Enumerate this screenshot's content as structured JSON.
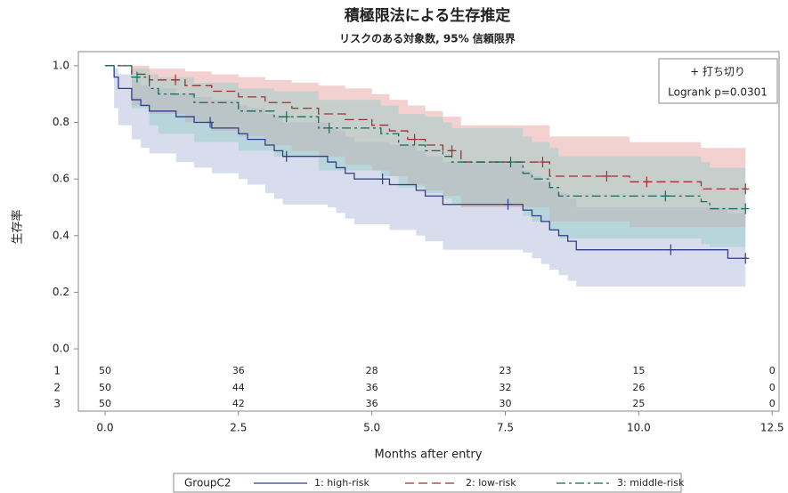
{
  "chart_data": {
    "type": "km-step",
    "title": "積極限法による生存推定",
    "subtitle": "リスクのある対象数, 95% 信頼限界",
    "xlabel": "Months after entry",
    "ylabel": "生存率",
    "xlim": [
      -0.5,
      12.63
    ],
    "ylim": [
      -0.22,
      1.05
    ],
    "xticks": [
      {
        "value": 0,
        "label": "0.0"
      },
      2.5,
      {
        "value": 5,
        "label": "5.0"
      },
      7.5,
      {
        "value": 10,
        "label": "10.0"
      },
      12.5
    ],
    "yticks": [
      {
        "value": 0,
        "label": "0.0"
      },
      0.2,
      0.4,
      0.6,
      0.8,
      {
        "value": 1,
        "label": "1.0"
      }
    ],
    "inset": {
      "censor_label": "+ 打ち切り",
      "test": "Logrank p=0.0301"
    },
    "legend_title": "GroupC2",
    "series": [
      {
        "name": "1: high-risk",
        "color": "#2e3d8f",
        "band_color": "#a9b3d8",
        "dash": "solid",
        "times": [
          0,
          0.17,
          0.25,
          0.5,
          0.67,
          0.83,
          1.33,
          1.67,
          2.0,
          2.5,
          2.67,
          3.0,
          3.17,
          3.33,
          4.17,
          4.33,
          4.5,
          4.67,
          5.33,
          5.83,
          6.0,
          6.33,
          7.83,
          8.0,
          8.17,
          8.33,
          8.5,
          8.67,
          8.83,
          11.67
        ],
        "values": [
          1,
          0.96,
          0.92,
          0.88,
          0.86,
          0.84,
          0.82,
          0.8,
          0.78,
          0.76,
          0.74,
          0.72,
          0.7,
          0.68,
          0.66,
          0.64,
          0.62,
          0.6,
          0.58,
          0.56,
          0.54,
          0.51,
          0.49,
          0.47,
          0.45,
          0.42,
          0.4,
          0.38,
          0.35,
          0.32
        ],
        "lower": [
          1,
          0.85,
          0.79,
          0.74,
          0.71,
          0.69,
          0.66,
          0.64,
          0.62,
          0.6,
          0.58,
          0.55,
          0.53,
          0.51,
          0.5,
          0.48,
          0.46,
          0.44,
          0.42,
          0.4,
          0.38,
          0.35,
          0.34,
          0.32,
          0.3,
          0.28,
          0.26,
          0.24,
          0.22,
          0.22
        ],
        "upper": [
          1,
          0.99,
          0.97,
          0.95,
          0.93,
          0.92,
          0.9,
          0.89,
          0.88,
          0.86,
          0.85,
          0.83,
          0.82,
          0.8,
          0.78,
          0.77,
          0.75,
          0.73,
          0.72,
          0.7,
          0.68,
          0.66,
          0.63,
          0.61,
          0.59,
          0.57,
          0.55,
          0.53,
          0.5,
          0.48
        ],
        "censor_times": [
          1.97,
          3.4,
          5.2,
          7.55,
          10.6,
          12.0
        ],
        "censor_values": [
          0.8,
          0.68,
          0.6,
          0.51,
          0.35,
          0.32
        ]
      },
      {
        "name": "2: low-risk",
        "color": "#a0302f",
        "band_color": "#e59a9a",
        "dash": "dashed",
        "times": [
          0,
          0.5,
          0.83,
          1.5,
          2.0,
          2.5,
          3.0,
          3.5,
          4.0,
          4.5,
          5.0,
          5.33,
          5.67,
          6.0,
          6.33,
          6.67,
          8.33,
          9.83,
          11.17
        ],
        "values": [
          1,
          0.97,
          0.95,
          0.93,
          0.91,
          0.89,
          0.87,
          0.85,
          0.83,
          0.81,
          0.79,
          0.77,
          0.74,
          0.72,
          0.7,
          0.66,
          0.61,
          0.59,
          0.565
        ],
        "lower": [
          1,
          0.86,
          0.83,
          0.8,
          0.77,
          0.75,
          0.72,
          0.7,
          0.68,
          0.65,
          0.63,
          0.61,
          0.58,
          0.56,
          0.54,
          0.5,
          0.45,
          0.43,
          0.43
        ],
        "upper": [
          1,
          1,
          0.99,
          0.98,
          0.97,
          0.96,
          0.95,
          0.94,
          0.93,
          0.92,
          0.9,
          0.88,
          0.86,
          0.84,
          0.82,
          0.79,
          0.75,
          0.73,
          0.71
        ],
        "censor_times": [
          1.32,
          5.8,
          6.5,
          8.2,
          9.4,
          10.15,
          12.0
        ],
        "censor_values": [
          0.95,
          0.74,
          0.7,
          0.66,
          0.61,
          0.59,
          0.565
        ]
      },
      {
        "name": "3: middle-risk",
        "color": "#0b6e5e",
        "band_color": "#93cbc6",
        "dash": "dashdot",
        "times": [
          0,
          0.5,
          0.83,
          1.0,
          1.67,
          2.5,
          3.17,
          4.0,
          5.17,
          5.5,
          6.0,
          6.33,
          6.5,
          7.83,
          8.0,
          8.33,
          8.5,
          11.17,
          11.33
        ],
        "values": [
          1,
          0.96,
          0.92,
          0.9,
          0.87,
          0.84,
          0.82,
          0.78,
          0.76,
          0.72,
          0.7,
          0.68,
          0.66,
          0.62,
          0.6,
          0.57,
          0.54,
          0.52,
          0.495
        ],
        "lower": [
          1,
          0.85,
          0.79,
          0.76,
          0.73,
          0.7,
          0.68,
          0.63,
          0.61,
          0.57,
          0.55,
          0.53,
          0.51,
          0.47,
          0.45,
          0.42,
          0.39,
          0.37,
          0.36
        ],
        "upper": [
          1,
          0.99,
          0.97,
          0.96,
          0.94,
          0.92,
          0.91,
          0.88,
          0.86,
          0.83,
          0.82,
          0.8,
          0.78,
          0.75,
          0.73,
          0.71,
          0.68,
          0.66,
          0.64
        ],
        "censor_times": [
          0.6,
          3.4,
          4.2,
          7.6,
          10.5,
          12.0
        ],
        "censor_values": [
          0.96,
          0.82,
          0.78,
          0.66,
          0.54,
          0.495
        ]
      }
    ],
    "at_risk": {
      "times": [
        0,
        2.5,
        5,
        7.5,
        10,
        12.5
      ],
      "rows": [
        {
          "label": "1",
          "counts": [
            50,
            36,
            28,
            23,
            15,
            0
          ]
        },
        {
          "label": "2",
          "counts": [
            50,
            44,
            36,
            32,
            26,
            0
          ]
        },
        {
          "label": "3",
          "counts": [
            50,
            42,
            36,
            30,
            25,
            0
          ]
        }
      ]
    }
  }
}
